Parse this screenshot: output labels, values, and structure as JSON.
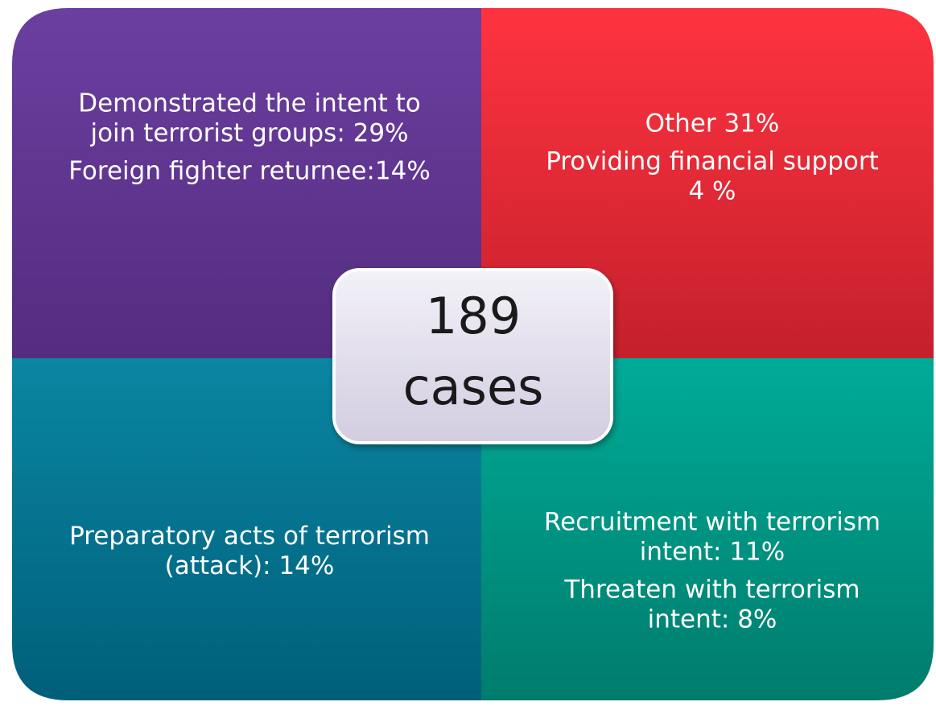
{
  "quadrants": [
    {
      "paragraphs": [
        [
          "Demonstrated the intent to",
          "join terrorist groups: 29%"
        ],
        [
          "Foreign fighter returnee:14%"
        ]
      ]
    },
    {
      "paragraphs": [
        [
          "Other 31%"
        ],
        [
          "Providing financial support",
          "4 %"
        ]
      ]
    },
    {
      "paragraphs": [
        [
          "Preparatory acts of terrorism",
          "(attack): 14%"
        ]
      ]
    },
    {
      "paragraphs": [
        [
          "Recruitment with terrorism",
          "intent: 11%"
        ],
        [
          "Threaten with terrorism",
          "intent: 8%"
        ]
      ]
    }
  ],
  "center": {
    "lines": [
      "189",
      "cases"
    ]
  }
}
